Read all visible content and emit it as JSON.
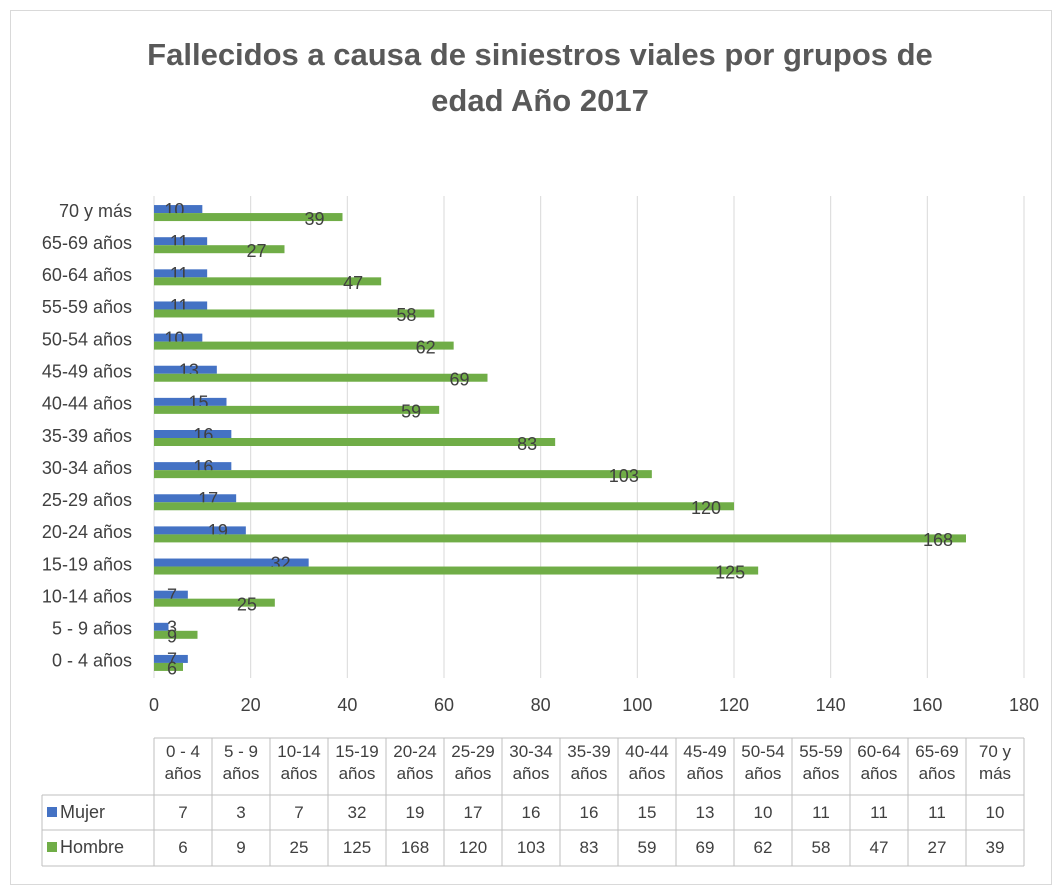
{
  "chart_data": {
    "type": "bar",
    "orientation": "horizontal",
    "title": "Fallecidos a causa de siniestros viales por grupos de edad Año 2017",
    "categories": [
      "0 - 4 años",
      "5 - 9 años",
      "10-14 años",
      "15-19 años",
      "20-24 años",
      "25-29 años",
      "30-34 años",
      "35-39 años",
      "40-44 años",
      "45-49 años",
      "50-54 años",
      "55-59 años",
      "60-64 años",
      "65-69 años",
      "70 y más"
    ],
    "series": [
      {
        "name": "Mujer",
        "color": "#4472c4",
        "values": [
          7,
          3,
          7,
          32,
          19,
          17,
          16,
          16,
          15,
          13,
          10,
          11,
          11,
          11,
          10
        ]
      },
      {
        "name": "Hombre",
        "color": "#70ad47",
        "values": [
          6,
          9,
          25,
          125,
          168,
          120,
          103,
          83,
          59,
          69,
          62,
          58,
          47,
          27,
          39
        ]
      }
    ],
    "xlim": [
      0,
      180
    ],
    "xticks": [
      0,
      20,
      40,
      60,
      80,
      100,
      120,
      140,
      160,
      180
    ],
    "grid": true,
    "data_labels": true,
    "data_table": true
  }
}
